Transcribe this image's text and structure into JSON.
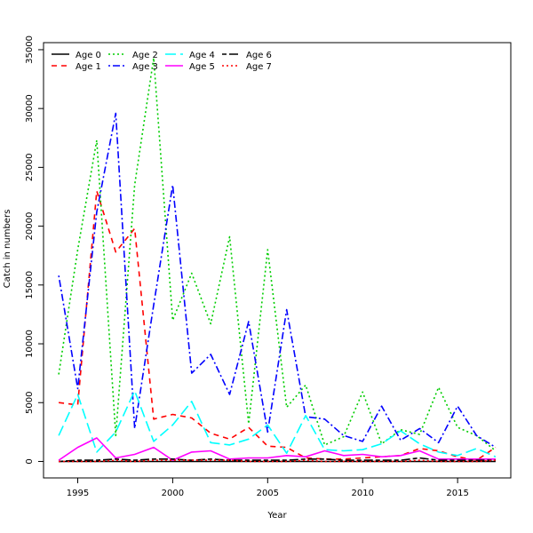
{
  "chart_data": {
    "type": "line",
    "xlabel": "Year",
    "ylabel": "Catch in numbers",
    "xlim": [
      1993.2,
      2017.8
    ],
    "ylim": [
      -1400,
      35600
    ],
    "xticks": [
      1995,
      2000,
      2005,
      2010,
      2015
    ],
    "xtick_labels": [
      "1995",
      "2000",
      "2005",
      "2010",
      "2015"
    ],
    "yticks": [
      0,
      5000,
      10000,
      15000,
      20000,
      25000,
      30000,
      35000
    ],
    "ytick_labels": [
      "0",
      "5000",
      "10000",
      "15000",
      "20000",
      "25000",
      "30000",
      "35000"
    ],
    "legend_position": "top-left",
    "x": [
      1994,
      1995,
      1996,
      1997,
      1998,
      1999,
      2000,
      2001,
      2002,
      2003,
      2004,
      2005,
      2006,
      2007,
      2008,
      2009,
      2010,
      2011,
      2012,
      2013,
      2014,
      2015,
      2016,
      2017
    ],
    "series": [
      {
        "name": "Age 0",
        "color": "#000000",
        "dash": "solid",
        "values": [
          0,
          0,
          0,
          0,
          0,
          0,
          0,
          0,
          0,
          0,
          0,
          0,
          0,
          0,
          0,
          0,
          0,
          0,
          0,
          0,
          0,
          0,
          0,
          0
        ]
      },
      {
        "name": "Age 1",
        "color": "#ff0000",
        "dash": "dashed",
        "values": [
          5000,
          4800,
          23000,
          17800,
          19800,
          3600,
          4000,
          3700,
          2400,
          1900,
          2900,
          1300,
          1200,
          300,
          200,
          200,
          300,
          400,
          500,
          1100,
          900,
          400,
          100,
          1200
        ]
      },
      {
        "name": "Age 2",
        "color": "#00cd00",
        "dash": "dotted",
        "values": [
          7400,
          18000,
          27300,
          2200,
          23500,
          34300,
          12000,
          16000,
          11700,
          19100,
          3200,
          18000,
          4600,
          6500,
          1400,
          2100,
          5900,
          1500,
          2700,
          2300,
          6300,
          2900,
          2200,
          900
        ]
      },
      {
        "name": "Age 3",
        "color": "#0000ff",
        "dash": "dotdash",
        "values": [
          15800,
          6200,
          21200,
          29600,
          2800,
          13300,
          23500,
          7500,
          9100,
          5700,
          11900,
          2500,
          12900,
          3800,
          3600,
          2200,
          1700,
          4700,
          1800,
          2800,
          1600,
          4700,
          2200,
          1200
        ]
      },
      {
        "name": "Age 4",
        "color": "#00ffff",
        "dash": "longdash",
        "values": [
          2200,
          5700,
          800,
          2500,
          6000,
          1700,
          3100,
          5100,
          1600,
          1400,
          1900,
          3100,
          700,
          3900,
          1000,
          900,
          1000,
          1500,
          2600,
          1500,
          800,
          500,
          1100,
          400
        ]
      },
      {
        "name": "Age 5",
        "color": "#ff00ff",
        "dash": "solid",
        "values": [
          100,
          1200,
          2000,
          300,
          600,
          1200,
          100,
          800,
          900,
          200,
          300,
          300,
          500,
          400,
          900,
          500,
          600,
          400,
          500,
          900,
          200,
          200,
          200,
          200
        ]
      },
      {
        "name": "Age 6",
        "color": "#000000",
        "dash": "twodash",
        "values": [
          0,
          100,
          100,
          200,
          100,
          200,
          200,
          100,
          200,
          100,
          100,
          100,
          100,
          200,
          200,
          100,
          100,
          100,
          100,
          300,
          100,
          100,
          100,
          100
        ]
      },
      {
        "name": "Age 7",
        "color": "#ff0000",
        "dash": "dotted",
        "values": [
          0,
          0,
          0,
          100,
          0,
          100,
          100,
          100,
          100,
          100,
          0,
          0,
          0,
          100,
          0,
          0,
          0,
          0,
          0,
          100,
          0,
          0,
          0,
          100
        ]
      }
    ]
  }
}
